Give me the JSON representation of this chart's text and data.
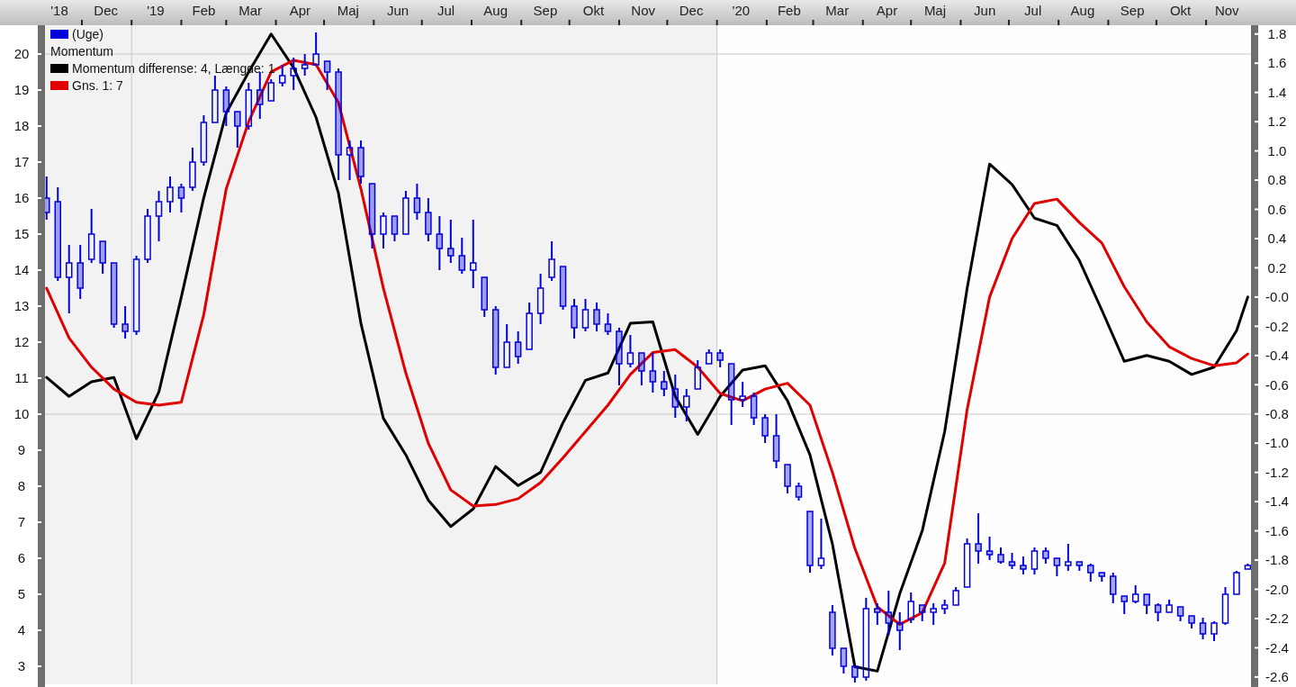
{
  "chart_data": {
    "type": "candlestick",
    "xlim": [
      "2018-11-08",
      "2020-11-29"
    ],
    "xticks": [
      {
        "value": "2018-11-17",
        "label": "'18"
      },
      {
        "value": "2018-12-16",
        "label": "Dec"
      },
      {
        "value": "2019-01-16",
        "label": "'19"
      },
      {
        "value": "2019-02-15",
        "label": "Feb"
      },
      {
        "value": "2019-03-16",
        "label": "Mar"
      },
      {
        "value": "2019-04-16",
        "label": "Apr"
      },
      {
        "value": "2019-05-16",
        "label": "Maj"
      },
      {
        "value": "2019-06-16",
        "label": "Jun"
      },
      {
        "value": "2019-07-16",
        "label": "Jul"
      },
      {
        "value": "2019-08-16",
        "label": "Aug"
      },
      {
        "value": "2019-09-16",
        "label": "Sep"
      },
      {
        "value": "2019-10-16",
        "label": "Okt"
      },
      {
        "value": "2019-11-16",
        "label": "Nov"
      },
      {
        "value": "2019-12-16",
        "label": "Dec"
      },
      {
        "value": "2020-01-16",
        "label": "'20"
      },
      {
        "value": "2020-02-15",
        "label": "Feb"
      },
      {
        "value": "2020-03-16",
        "label": "Mar"
      },
      {
        "value": "2020-04-16",
        "label": "Apr"
      },
      {
        "value": "2020-05-16",
        "label": "Maj"
      },
      {
        "value": "2020-06-16",
        "label": "Jun"
      },
      {
        "value": "2020-07-16",
        "label": "Jul"
      },
      {
        "value": "2020-08-16",
        "label": "Aug"
      },
      {
        "value": "2020-09-16",
        "label": "Sep"
      },
      {
        "value": "2020-10-16",
        "label": "Okt"
      },
      {
        "value": "2020-11-14",
        "label": "Nov"
      },
      {
        "value": "2018-12-01",
        "label": null
      },
      {
        "value": "2019-01-01",
        "label": null
      },
      {
        "value": "2019-02-01",
        "label": null
      },
      {
        "value": "2019-03-01",
        "label": null
      },
      {
        "value": "2019-04-01",
        "label": null
      },
      {
        "value": "2019-05-01",
        "label": null
      },
      {
        "value": "2019-06-01",
        "label": null
      },
      {
        "value": "2019-07-01",
        "label": null
      },
      {
        "value": "2019-08-01",
        "label": null
      },
      {
        "value": "2019-09-01",
        "label": null
      },
      {
        "value": "2019-10-01",
        "label": null
      },
      {
        "value": "2019-11-01",
        "label": null
      },
      {
        "value": "2019-12-01",
        "label": null
      },
      {
        "value": "2020-01-01",
        "label": null
      },
      {
        "value": "2020-02-01",
        "label": null
      },
      {
        "value": "2020-03-01",
        "label": null
      },
      {
        "value": "2020-04-01",
        "label": null
      },
      {
        "value": "2020-05-01",
        "label": null
      },
      {
        "value": "2020-06-01",
        "label": null
      },
      {
        "value": "2020-07-01",
        "label": null
      },
      {
        "value": "2020-08-01",
        "label": null
      },
      {
        "value": "2020-09-01",
        "label": null
      },
      {
        "value": "2020-10-01",
        "label": null
      },
      {
        "value": "2020-11-01",
        "label": null
      }
    ],
    "ylim": [
      2.5,
      20.8
    ],
    "yticks": [
      3,
      4,
      5,
      6,
      7,
      8,
      9,
      10,
      11,
      12,
      13,
      14,
      15,
      16,
      17,
      18,
      19,
      20
    ],
    "y2lim": [
      -2.65,
      1.86
    ],
    "y2ticks": [
      1.8,
      1.6,
      1.4,
      1.2,
      {
        "value": 1,
        "label": "1.0"
      },
      0.8,
      0.6,
      0.4,
      0.2,
      {
        "value": 0,
        "label": "-0.0"
      },
      -0.2,
      -0.4,
      -0.6,
      -0.8,
      {
        "value": -1,
        "label": "-1.0"
      },
      -1.2,
      -1.4,
      -1.6,
      -1.8,
      {
        "value": -2,
        "label": "-2.0"
      },
      -2.2,
      -2.4,
      -2.6
    ],
    "bands": [
      {
        "axis": "x",
        "from": "2018-11-08",
        "to": "2020-01-01",
        "color": "#f2f2f2"
      }
    ],
    "ref_lines": [
      {
        "axis": "y",
        "value": 10,
        "color": "#c8c8c8"
      },
      {
        "axis": "y",
        "value": 20,
        "color": "#c8c8c8"
      },
      {
        "axis": "x",
        "value": "2019-01-01",
        "color": "#c8c8c8"
      },
      {
        "axis": "x",
        "value": "2020-01-01",
        "color": "#c8c8c8"
      }
    ],
    "legend": "top left",
    "annotations": [
      "Momentum"
    ],
    "series": [
      {
        "name": "(Uge)",
        "color": "#0000dd",
        "x": [
          "2018-11-09",
          "2018-11-16",
          "2018-11-23",
          "2018-11-30",
          "2018-12-07",
          "2018-12-14",
          "2018-12-21",
          "2018-12-28",
          "2019-01-04",
          "2019-01-11",
          "2019-01-18",
          "2019-01-25",
          "2019-02-01",
          "2019-02-08",
          "2019-02-15",
          "2019-02-22",
          "2019-03-01",
          "2019-03-08",
          "2019-03-15",
          "2019-03-22",
          "2019-03-29",
          "2019-04-05",
          "2019-04-12",
          "2019-04-19",
          "2019-04-26",
          "2019-05-03",
          "2019-05-10",
          "2019-05-17",
          "2019-05-24",
          "2019-05-31",
          "2019-06-07",
          "2019-06-14",
          "2019-06-21",
          "2019-06-28",
          "2019-07-05",
          "2019-07-12",
          "2019-07-19",
          "2019-07-26",
          "2019-08-02",
          "2019-08-09",
          "2019-08-16",
          "2019-08-23",
          "2019-08-30",
          "2019-09-06",
          "2019-09-13",
          "2019-09-20",
          "2019-09-27",
          "2019-10-04",
          "2019-10-11",
          "2019-10-18",
          "2019-10-25",
          "2019-11-01",
          "2019-11-08",
          "2019-11-15",
          "2019-11-22",
          "2019-11-29",
          "2019-12-06",
          "2019-12-13",
          "2019-12-20",
          "2019-12-27",
          "2020-01-03",
          "2020-01-10",
          "2020-01-17",
          "2020-01-24",
          "2020-01-31",
          "2020-02-07",
          "2020-02-14",
          "2020-02-21",
          "2020-02-28",
          "2020-03-06",
          "2020-03-13",
          "2020-03-20",
          "2020-03-27",
          "2020-04-03",
          "2020-04-10",
          "2020-04-17",
          "2020-04-24",
          "2020-05-01",
          "2020-05-08",
          "2020-05-15",
          "2020-05-22",
          "2020-05-29",
          "2020-06-05",
          "2020-06-12",
          "2020-06-19",
          "2020-06-26",
          "2020-07-03",
          "2020-07-10",
          "2020-07-17",
          "2020-07-24",
          "2020-07-31",
          "2020-08-07",
          "2020-08-14",
          "2020-08-21",
          "2020-08-28",
          "2020-09-04",
          "2020-09-11",
          "2020-09-18",
          "2020-09-25",
          "2020-10-02",
          "2020-10-09",
          "2020-10-16",
          "2020-10-23",
          "2020-10-30",
          "2020-11-06",
          "2020-11-13",
          "2020-11-20",
          "2020-11-27"
        ],
        "ohlc": [
          [
            16.0,
            16.6,
            15.4,
            15.6
          ],
          [
            15.9,
            16.3,
            13.7,
            13.8
          ],
          [
            13.8,
            14.7,
            12.8,
            14.2
          ],
          [
            14.2,
            14.7,
            13.2,
            13.5
          ],
          [
            14.3,
            15.7,
            14.2,
            15.0
          ],
          [
            14.8,
            14.8,
            13.9,
            14.2
          ],
          [
            14.2,
            14.2,
            12.4,
            12.5
          ],
          [
            12.5,
            13.0,
            12.1,
            12.3
          ],
          [
            12.3,
            14.4,
            12.2,
            14.3
          ],
          [
            14.3,
            15.7,
            14.2,
            15.5
          ],
          [
            15.5,
            16.2,
            14.8,
            15.9
          ],
          [
            15.9,
            16.6,
            15.6,
            16.3
          ],
          [
            16.3,
            16.4,
            15.6,
            16.0
          ],
          [
            16.3,
            17.4,
            16.2,
            17.0
          ],
          [
            17.0,
            18.3,
            16.9,
            18.1
          ],
          [
            18.1,
            19.4,
            18.1,
            19.0
          ],
          [
            19.0,
            19.1,
            18.0,
            18.4
          ],
          [
            18.4,
            18.4,
            17.4,
            18.0
          ],
          [
            18.0,
            19.2,
            17.9,
            19.0
          ],
          [
            19.0,
            19.5,
            18.2,
            18.6
          ],
          [
            18.7,
            19.3,
            18.7,
            19.2
          ],
          [
            19.2,
            19.7,
            19.1,
            19.4
          ],
          [
            19.4,
            19.9,
            19.0,
            19.6
          ],
          [
            19.6,
            20.0,
            19.4,
            19.7
          ],
          [
            19.7,
            20.6,
            19.7,
            20.0
          ],
          [
            19.8,
            19.8,
            19.0,
            19.5
          ],
          [
            19.5,
            19.6,
            16.5,
            17.2
          ],
          [
            17.2,
            17.6,
            16.5,
            17.4
          ],
          [
            17.4,
            17.6,
            16.4,
            16.6
          ],
          [
            16.4,
            16.4,
            14.6,
            15.0
          ],
          [
            15.0,
            15.6,
            14.6,
            15.5
          ],
          [
            15.5,
            15.5,
            14.8,
            15.0
          ],
          [
            15.0,
            16.2,
            15.0,
            16.0
          ],
          [
            16.0,
            16.4,
            15.4,
            15.6
          ],
          [
            15.6,
            16.0,
            14.8,
            15.0
          ],
          [
            15.0,
            15.5,
            14.0,
            14.6
          ],
          [
            14.6,
            15.4,
            14.2,
            14.4
          ],
          [
            14.4,
            14.9,
            13.9,
            14.0
          ],
          [
            14.0,
            15.4,
            13.5,
            14.2
          ],
          [
            13.8,
            13.8,
            12.7,
            12.9
          ],
          [
            12.9,
            13.0,
            11.1,
            11.3
          ],
          [
            11.3,
            12.5,
            11.3,
            12.0
          ],
          [
            12.0,
            12.3,
            11.4,
            11.6
          ],
          [
            11.8,
            13.1,
            11.8,
            12.8
          ],
          [
            12.8,
            13.9,
            12.5,
            13.5
          ],
          [
            13.8,
            14.8,
            13.7,
            14.3
          ],
          [
            14.1,
            14.1,
            12.9,
            13.0
          ],
          [
            13.0,
            13.2,
            12.1,
            12.4
          ],
          [
            12.4,
            13.2,
            12.3,
            12.9
          ],
          [
            12.9,
            13.1,
            12.3,
            12.5
          ],
          [
            12.5,
            12.8,
            12.2,
            12.3
          ],
          [
            12.3,
            12.4,
            10.8,
            11.4
          ],
          [
            11.4,
            12.2,
            11.3,
            11.7
          ],
          [
            11.7,
            11.7,
            10.8,
            11.2
          ],
          [
            11.2,
            11.7,
            10.6,
            10.9
          ],
          [
            10.9,
            11.2,
            10.5,
            10.7
          ],
          [
            10.7,
            11.1,
            9.9,
            10.2
          ],
          [
            10.2,
            10.7,
            9.8,
            10.5
          ],
          [
            10.7,
            11.5,
            10.7,
            11.3
          ],
          [
            11.4,
            11.8,
            11.4,
            11.7
          ],
          [
            11.7,
            11.8,
            11.3,
            11.5
          ],
          [
            11.4,
            11.4,
            9.7,
            10.4
          ],
          [
            10.4,
            10.9,
            10.2,
            10.5
          ],
          [
            10.5,
            10.6,
            9.7,
            9.9
          ],
          [
            9.9,
            10.0,
            9.2,
            9.4
          ],
          [
            9.4,
            10.0,
            8.5,
            8.7
          ],
          [
            8.6,
            8.6,
            7.8,
            8.0
          ],
          [
            8.0,
            8.1,
            7.6,
            7.7
          ],
          [
            7.3,
            7.3,
            5.6,
            5.8
          ],
          [
            5.8,
            7.1,
            5.7,
            6.0
          ],
          [
            4.5,
            4.7,
            3.3,
            3.5
          ],
          [
            3.5,
            3.5,
            2.8,
            3.0
          ],
          [
            3.0,
            3.0,
            2.55,
            2.7
          ],
          [
            2.7,
            4.9,
            2.6,
            4.6
          ],
          [
            4.6,
            4.75,
            4.15,
            4.5
          ],
          [
            4.5,
            5.1,
            3.85,
            4.2
          ],
          [
            4.2,
            4.5,
            3.45,
            4.0
          ],
          [
            4.3,
            5.05,
            4.2,
            4.8
          ],
          [
            4.7,
            4.7,
            4.25,
            4.5
          ],
          [
            4.5,
            4.75,
            4.15,
            4.6
          ],
          [
            4.6,
            4.85,
            4.45,
            4.7
          ],
          [
            4.7,
            5.2,
            4.7,
            5.1
          ],
          [
            5.2,
            6.55,
            5.2,
            6.4
          ],
          [
            6.4,
            7.25,
            5.85,
            6.2
          ],
          [
            6.2,
            6.6,
            5.95,
            6.1
          ],
          [
            6.1,
            6.3,
            5.85,
            5.9
          ],
          [
            5.9,
            6.15,
            5.7,
            5.8
          ],
          [
            5.8,
            6.05,
            5.55,
            5.7
          ],
          [
            5.7,
            6.3,
            5.55,
            6.2
          ],
          [
            6.2,
            6.3,
            5.85,
            6.0
          ],
          [
            6.0,
            6.0,
            5.5,
            5.8
          ],
          [
            5.8,
            6.4,
            5.65,
            5.9
          ],
          [
            5.9,
            5.9,
            5.65,
            5.8
          ],
          [
            5.8,
            5.85,
            5.35,
            5.6
          ],
          [
            5.6,
            5.6,
            5.35,
            5.5
          ],
          [
            5.5,
            5.6,
            4.75,
            5.0
          ],
          [
            4.95,
            4.95,
            4.45,
            4.8
          ],
          [
            4.8,
            5.25,
            4.75,
            5.0
          ],
          [
            5.0,
            5.0,
            4.45,
            4.7
          ],
          [
            4.7,
            4.75,
            4.25,
            4.5
          ],
          [
            4.5,
            4.85,
            4.5,
            4.7
          ],
          [
            4.65,
            4.65,
            4.25,
            4.4
          ],
          [
            4.4,
            4.4,
            4.05,
            4.2
          ],
          [
            4.2,
            4.35,
            3.75,
            3.9
          ],
          [
            3.9,
            4.25,
            3.7,
            4.2
          ],
          [
            4.2,
            5.2,
            4.15,
            5.0
          ],
          [
            5.0,
            5.65,
            5.0,
            5.6
          ],
          [
            5.7,
            5.85,
            5.7,
            5.8
          ]
        ]
      },
      {
        "type": "line",
        "axis": "y2",
        "name": "Momentum differense: 4, Længde: 1",
        "color": "#000000",
        "x": [
          "2018-11-09",
          "2018-11-23",
          "2018-12-07",
          "2018-12-21",
          "2019-01-04",
          "2019-01-18",
          "2019-02-01",
          "2019-02-15",
          "2019-03-01",
          "2019-03-15",
          "2019-03-29",
          "2019-04-12",
          "2019-04-26",
          "2019-05-10",
          "2019-05-24",
          "2019-06-07",
          "2019-06-21",
          "2019-07-05",
          "2019-07-19",
          "2019-08-02",
          "2019-08-16",
          "2019-08-30",
          "2019-09-13",
          "2019-09-27",
          "2019-10-11",
          "2019-10-25",
          "2019-11-08",
          "2019-11-22",
          "2019-12-06",
          "2019-12-20",
          "2020-01-03",
          "2020-01-17",
          "2020-01-31",
          "2020-02-14",
          "2020-02-28",
          "2020-03-13",
          "2020-03-27",
          "2020-04-10",
          "2020-04-24",
          "2020-05-08",
          "2020-05-22",
          "2020-06-05",
          "2020-06-19",
          "2020-07-03",
          "2020-07-17",
          "2020-07-31",
          "2020-08-14",
          "2020-08-28",
          "2020-09-11",
          "2020-09-25",
          "2020-10-09",
          "2020-10-23",
          "2020-11-06",
          "2020-11-20",
          "2020-11-27"
        ],
        "values": [
          -0.55,
          -0.68,
          -0.58,
          -0.55,
          -0.97,
          -0.65,
          0.0,
          0.68,
          1.26,
          1.54,
          1.8,
          1.57,
          1.23,
          0.71,
          -0.18,
          -0.83,
          -1.08,
          -1.39,
          -1.57,
          -1.45,
          -1.16,
          -1.29,
          -1.2,
          -0.86,
          -0.57,
          -0.52,
          -0.18,
          -0.17,
          -0.68,
          -0.94,
          -0.68,
          -0.5,
          -0.47,
          -0.71,
          -1.08,
          -1.69,
          -2.53,
          -2.56,
          -2.03,
          -1.6,
          -0.92,
          0.06,
          0.91,
          0.77,
          0.54,
          0.49,
          0.25,
          -0.09,
          -0.44,
          -0.4,
          -0.44,
          -0.53,
          -0.48,
          -0.23,
          0.0
        ]
      },
      {
        "type": "line",
        "axis": "y2",
        "name": "Gns. 1: 7",
        "color": "#e00000",
        "x": [
          "2018-11-09",
          "2018-11-23",
          "2018-12-07",
          "2018-12-21",
          "2019-01-04",
          "2019-01-18",
          "2019-02-01",
          "2019-02-15",
          "2019-03-01",
          "2019-03-15",
          "2019-03-29",
          "2019-04-12",
          "2019-04-26",
          "2019-05-10",
          "2019-05-24",
          "2019-06-07",
          "2019-06-21",
          "2019-07-05",
          "2019-07-19",
          "2019-08-02",
          "2019-08-16",
          "2019-08-30",
          "2019-09-13",
          "2019-09-27",
          "2019-10-11",
          "2019-10-25",
          "2019-11-08",
          "2019-11-22",
          "2019-12-06",
          "2019-12-20",
          "2020-01-03",
          "2020-01-17",
          "2020-01-31",
          "2020-02-14",
          "2020-02-28",
          "2020-03-13",
          "2020-03-27",
          "2020-04-10",
          "2020-04-24",
          "2020-05-08",
          "2020-05-22",
          "2020-06-05",
          "2020-06-19",
          "2020-07-03",
          "2020-07-17",
          "2020-07-31",
          "2020-08-14",
          "2020-08-28",
          "2020-09-11",
          "2020-09-25",
          "2020-10-09",
          "2020-10-23",
          "2020-11-06",
          "2020-11-20",
          "2020-11-27"
        ],
        "values": [
          0.06,
          -0.28,
          -0.48,
          -0.63,
          -0.72,
          -0.74,
          -0.72,
          -0.12,
          0.74,
          1.2,
          1.54,
          1.62,
          1.59,
          1.33,
          0.74,
          0.06,
          -0.52,
          -1.0,
          -1.32,
          -1.43,
          -1.42,
          -1.38,
          -1.27,
          -1.1,
          -0.92,
          -0.74,
          -0.53,
          -0.38,
          -0.36,
          -0.48,
          -0.66,
          -0.71,
          -0.63,
          -0.59,
          -0.74,
          -1.2,
          -1.72,
          -2.12,
          -2.24,
          -2.16,
          -1.82,
          -0.77,
          0.0,
          0.4,
          0.64,
          0.67,
          0.51,
          0.37,
          0.07,
          -0.17,
          -0.34,
          -0.42,
          -0.47,
          -0.45,
          -0.39
        ]
      }
    ]
  }
}
